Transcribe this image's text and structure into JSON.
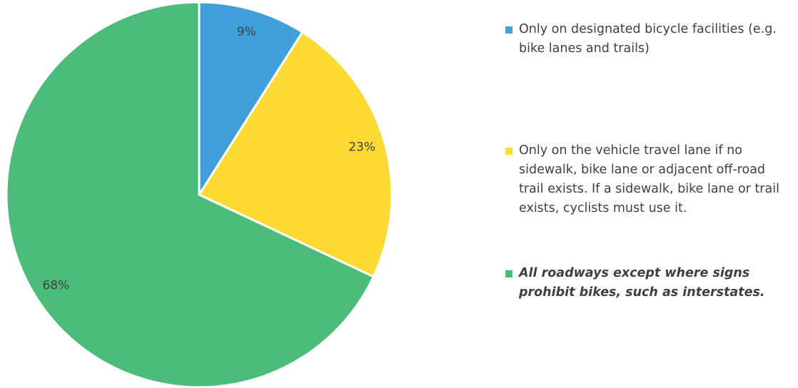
{
  "chart_data": {
    "type": "pie",
    "categories": [
      "Only on designated bicycle facilities (e.g. bike lanes and trails)",
      "Only on the vehicle travel lane if no sidewalk, bike lane or adjacent off-road trail exists. If a sidewalk, bike lane or trail exists, cyclists must use it.",
      "All roadways except where signs prohibit bikes, such as interstates."
    ],
    "values": [
      9,
      23,
      68
    ],
    "value_labels": [
      "9%",
      "23%",
      "68%"
    ],
    "colors": [
      "#419fd9",
      "#fcda33",
      "#4cbc7a"
    ],
    "legend": "right"
  }
}
